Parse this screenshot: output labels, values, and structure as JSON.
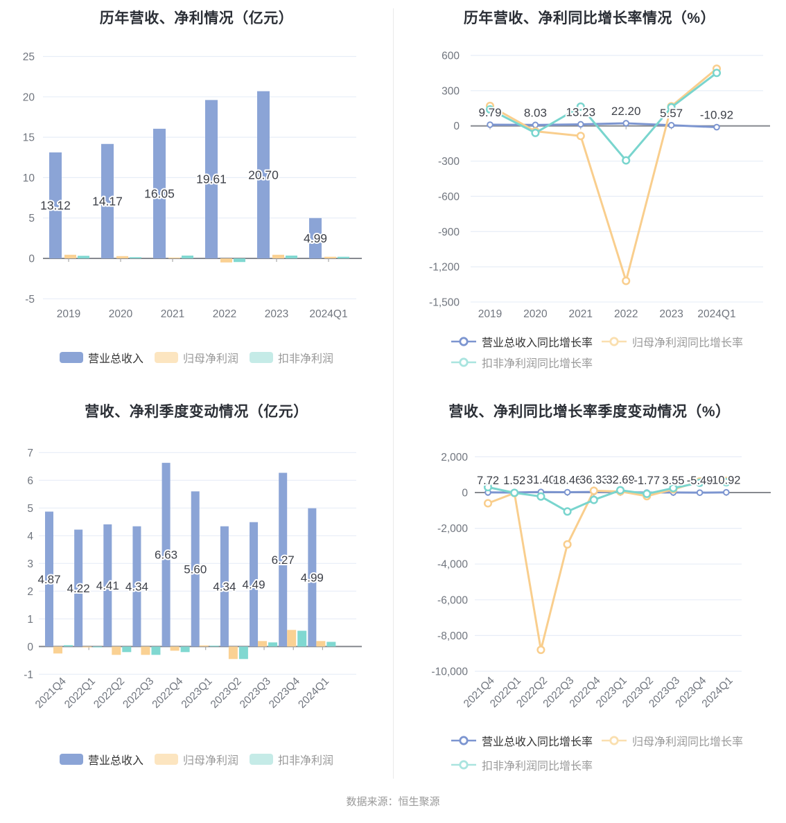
{
  "footer": {
    "text": "数据来源：恒生聚源"
  },
  "theme": {
    "background": "#FFFFFF",
    "grid_color": "#E7EDF7",
    "zero_line_color": "#86898F",
    "tick_color": "#999999",
    "axis_label_color": "#70757E",
    "title_color": "#2B2F36",
    "data_label_color": "#3D4048",
    "legend_text_active": "#333333",
    "legend_text_muted": "#999999",
    "footer_color": "#999999",
    "divider_color": "#E9E9E9",
    "blue": "#8BA4D6",
    "yellow": "#FAD193",
    "teal": "#80D8D1"
  },
  "chart_data": [
    {
      "id": "annual-amounts",
      "type": "bar",
      "title": "历年营收、净利情况（亿元）",
      "categories": [
        "2019",
        "2020",
        "2021",
        "2022",
        "2023",
        "2024Q1"
      ],
      "ylim": [
        -5,
        25
      ],
      "ystep": 5,
      "ytick_labels": [
        "25",
        "20",
        "15",
        "10",
        "5",
        "0",
        "-5"
      ],
      "grid": true,
      "legend_position": "bottom",
      "series": [
        {
          "name": "营业总收入",
          "color": "#8BA4D6",
          "legend_color": "#8BA4D6",
          "values": [
            13.12,
            14.17,
            16.05,
            19.61,
            20.7,
            4.99
          ],
          "labels": [
            "13.12",
            "14.17",
            "16.05",
            "19.61",
            "20.70",
            "4.99"
          ]
        },
        {
          "name": "归母净利润",
          "color": "#FAD193",
          "legend_color": "#FCE5C0",
          "values": [
            0.45,
            0.28,
            0.05,
            -0.5,
            0.45,
            0.2
          ]
        },
        {
          "name": "扣非净利润",
          "color": "#80D8D1",
          "legend_color": "#C5EBE7",
          "values": [
            0.32,
            0.15,
            0.35,
            -0.45,
            0.35,
            0.2
          ]
        }
      ]
    },
    {
      "id": "annual-growth",
      "type": "line",
      "title": "历年营收、净利同比增长率情况（%）",
      "categories": [
        "2019",
        "2020",
        "2021",
        "2022",
        "2023",
        "2024Q1"
      ],
      "ylim": [
        -1500,
        600
      ],
      "ystep": 300,
      "ytick_labels": [
        "600",
        "300",
        "0",
        "-300",
        "-600",
        "-900",
        "-1,200",
        "-1,500"
      ],
      "grid": true,
      "legend_position": "bottom",
      "series": [
        {
          "name": "营业总收入同比增长率",
          "color": "#7C95D0",
          "legend_color": "#7C95D0",
          "values": [
            9.79,
            8.03,
            13.23,
            22.2,
            5.57,
            -10.92
          ],
          "labels": [
            "9.79",
            "8.03",
            "13.23",
            "22.20",
            "5.57",
            "-10.92"
          ]
        },
        {
          "name": "归母净利润同比增长率",
          "color": "#F9CE8D",
          "legend_color": "#FADFAF",
          "values": [
            170,
            -46,
            -86,
            -1320,
            167,
            487
          ]
        },
        {
          "name": "扣非净利润同比增长率",
          "color": "#79D5CE",
          "legend_color": "#A9E4DF",
          "values": [
            140,
            -60,
            164,
            -294,
            158,
            451
          ]
        }
      ]
    },
    {
      "id": "quarterly-amounts",
      "type": "bar",
      "title": "营收、净利季度变动情况（亿元）",
      "categories": [
        "2021Q4",
        "2022Q1",
        "2022Q2",
        "2022Q3",
        "2022Q4",
        "2023Q1",
        "2023Q2",
        "2023Q3",
        "2023Q4",
        "2024Q1"
      ],
      "ylim": [
        -1,
        7
      ],
      "ystep": 1,
      "ytick_labels": [
        "7",
        "6",
        "5",
        "4",
        "3",
        "2",
        "1",
        "0",
        "-1"
      ],
      "grid": true,
      "legend_position": "bottom",
      "xlabel_rotate": 45,
      "series": [
        {
          "name": "营业总收入",
          "color": "#8BA4D6",
          "legend_color": "#8BA4D6",
          "values": [
            4.87,
            4.22,
            4.41,
            4.34,
            6.63,
            5.6,
            4.34,
            4.49,
            6.27,
            4.99
          ],
          "labels": [
            "4.87",
            "4.22",
            "4.41",
            "4.34",
            "6.63",
            "5.60",
            "4.34",
            "4.49",
            "6.27",
            "4.99"
          ]
        },
        {
          "name": "归母净利润",
          "color": "#FAD193",
          "legend_color": "#FCE5C0",
          "values": [
            -0.25,
            -0.03,
            -0.3,
            -0.3,
            -0.15,
            0.04,
            -0.45,
            0.2,
            0.6,
            0.2
          ]
        },
        {
          "name": "扣非净利润",
          "color": "#80D8D1",
          "legend_color": "#C5EBE7",
          "values": [
            0.05,
            -0.03,
            -0.2,
            -0.3,
            -0.2,
            0.03,
            -0.45,
            0.15,
            0.57,
            0.17
          ]
        }
      ]
    },
    {
      "id": "quarterly-growth",
      "type": "line",
      "title": "营收、净利同比增长率季度变动情况（%）",
      "categories": [
        "2021Q4",
        "2022Q1",
        "2022Q2",
        "2022Q3",
        "2022Q4",
        "2023Q1",
        "2023Q2",
        "2023Q3",
        "2023Q4",
        "2024Q1"
      ],
      "ylim": [
        -10000,
        2000
      ],
      "ystep": 2000,
      "ytick_labels": [
        "2,000",
        "0",
        "-2,000",
        "-4,000",
        "-6,000",
        "-8,000",
        "-10,000"
      ],
      "grid": true,
      "legend_position": "bottom",
      "xlabel_rotate": 45,
      "series": [
        {
          "name": "营业总收入同比增长率",
          "color": "#7C95D0",
          "legend_color": "#7C95D0",
          "values": [
            7.72,
            1.52,
            31.4,
            18.46,
            36.33,
            32.69,
            -1.77,
            3.55,
            -5.49,
            10.92
          ],
          "labels": [
            "7.72",
            "1.52",
            "31.40",
            "18.46",
            "36.33",
            "32.69",
            "-1.77",
            "3.55",
            "-5.49",
            "10.92"
          ]
        },
        {
          "name": "归母净利润同比增长率",
          "color": "#F9CE8D",
          "legend_color": "#FADFAF",
          "values": [
            -600,
            -30,
            -8800,
            -2900,
            100,
            60,
            -200,
            180,
            620,
            650
          ]
        },
        {
          "name": "扣非净利润同比增长率",
          "color": "#79D5CE",
          "legend_color": "#A9E4DF",
          "values": [
            300,
            -15,
            -220,
            -1060,
            -410,
            130,
            -70,
            250,
            550,
            580
          ]
        }
      ]
    }
  ]
}
